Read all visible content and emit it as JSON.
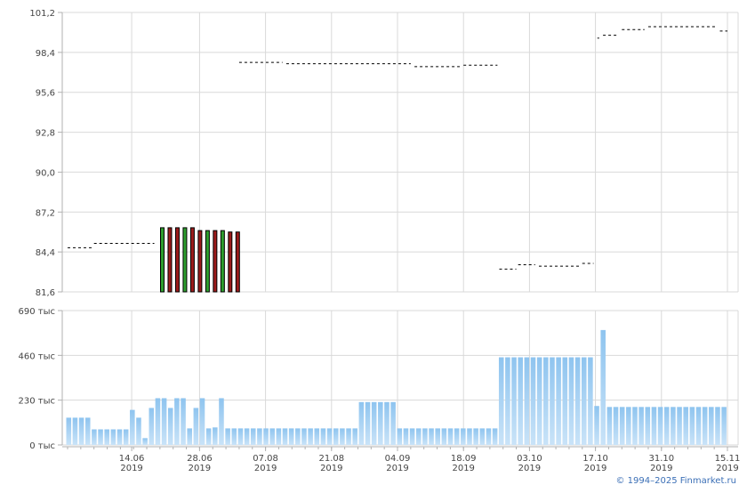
{
  "copyright": "© 1994–2025 Finmarket.ru",
  "colors": {
    "grid": "#d9d9d9",
    "axis": "#b0b0b0",
    "up": "#2e9e2e",
    "down": "#9b1b1b",
    "volume_top": "#8ec4ef",
    "volume_bottom": "#c9e3f8",
    "price_line": "#000000"
  },
  "chart_data": [
    {
      "type": "line",
      "name": "price",
      "ylim": [
        81.6,
        101.2
      ],
      "y_tick_labels": [
        "101,2",
        "98,4",
        "95,6",
        "92,8",
        "90,0",
        "87,2",
        "84,4",
        "81,6"
      ],
      "y_ticks": [
        101.2,
        98.4,
        95.6,
        92.8,
        90.0,
        87.2,
        84.4,
        81.6
      ],
      "x_range_days": [
        0,
        175
      ],
      "grid": true,
      "series_dashed": [
        {
          "x": [
            0,
            6.5
          ],
          "y": [
            84.7,
            84.7
          ]
        },
        {
          "x": [
            7,
            23
          ],
          "y": [
            85.0,
            85.0
          ]
        },
        {
          "x": [
            45.5,
            57
          ],
          "y": [
            97.7,
            97.7
          ]
        },
        {
          "x": [
            58,
            91
          ],
          "y": [
            97.6,
            97.6
          ]
        },
        {
          "x": [
            92,
            104
          ],
          "y": [
            97.4,
            97.4
          ]
        },
        {
          "x": [
            105,
            114
          ],
          "y": [
            97.5,
            97.5
          ]
        },
        {
          "x": [
            114.5,
            119
          ],
          "y": [
            83.2,
            83.2
          ]
        },
        {
          "x": [
            119.5,
            124
          ],
          "y": [
            83.5,
            83.5
          ]
        },
        {
          "x": [
            125,
            136
          ],
          "y": [
            83.4,
            83.4
          ]
        },
        {
          "x": [
            136.5,
            139.5
          ],
          "y": [
            83.6,
            83.6
          ]
        },
        {
          "x": [
            140.5,
            141
          ],
          "y": [
            99.4,
            99.4
          ]
        },
        {
          "x": [
            142,
            146
          ],
          "y": [
            99.6,
            99.6
          ]
        },
        {
          "x": [
            147,
            153
          ],
          "y": [
            100.0,
            100.0
          ]
        },
        {
          "x": [
            154,
            172
          ],
          "y": [
            100.2,
            100.2
          ]
        },
        {
          "x": [
            173,
            175
          ],
          "y": [
            99.9,
            99.9
          ]
        }
      ],
      "candles": [
        {
          "x": 25,
          "open": 81.6,
          "close": 86.1,
          "dir": "up"
        },
        {
          "x": 27,
          "open": 86.1,
          "close": 81.6,
          "dir": "down"
        },
        {
          "x": 29,
          "open": 86.1,
          "close": 81.6,
          "dir": "down"
        },
        {
          "x": 31,
          "open": 81.6,
          "close": 86.1,
          "dir": "up"
        },
        {
          "x": 33,
          "open": 86.1,
          "close": 81.6,
          "dir": "down"
        },
        {
          "x": 35,
          "open": 85.9,
          "close": 81.6,
          "dir": "down"
        },
        {
          "x": 37,
          "open": 81.6,
          "close": 85.9,
          "dir": "up"
        },
        {
          "x": 39,
          "open": 85.9,
          "close": 81.6,
          "dir": "down"
        },
        {
          "x": 41,
          "open": 81.6,
          "close": 85.9,
          "dir": "up"
        },
        {
          "x": 43,
          "open": 85.8,
          "close": 81.6,
          "dir": "down"
        },
        {
          "x": 45,
          "open": 85.8,
          "close": 81.6,
          "dir": "down"
        }
      ]
    },
    {
      "type": "bar",
      "name": "volume",
      "ylim": [
        0,
        690
      ],
      "y_tick_labels": [
        "690 тыс",
        "460 тыс",
        "230 тыс",
        "0 тыс"
      ],
      "y_ticks": [
        690,
        460,
        230,
        0
      ],
      "x_tick_labels": [
        [
          "14.06",
          "2019"
        ],
        [
          "28.06",
          "2019"
        ],
        [
          "07.08",
          "2019"
        ],
        [
          "21.08",
          "2019"
        ],
        [
          "04.09",
          "2019"
        ],
        [
          "18.09",
          "2019"
        ],
        [
          "03.10",
          "2019"
        ],
        [
          "17.10",
          "2019"
        ],
        [
          "31.10",
          "2019"
        ],
        [
          "15.11",
          "2019"
        ]
      ],
      "x_tick_positions": [
        17,
        35,
        52.5,
        70,
        87.5,
        105,
        122.5,
        140,
        157.5,
        175
      ],
      "values": [
        140,
        140,
        140,
        140,
        80,
        80,
        80,
        80,
        80,
        80,
        180,
        140,
        35,
        190,
        240,
        240,
        190,
        240,
        240,
        85,
        190,
        240,
        85,
        90,
        240,
        85,
        85,
        85,
        85,
        85,
        85,
        85,
        85,
        85,
        85,
        85,
        85,
        85,
        85,
        85,
        85,
        85,
        85,
        85,
        85,
        85,
        220,
        220,
        220,
        220,
        220,
        220,
        85,
        85,
        85,
        85,
        85,
        85,
        85,
        85,
        85,
        85,
        85,
        85,
        85,
        85,
        85,
        85,
        450,
        450,
        450,
        450,
        450,
        450,
        450,
        450,
        450,
        450,
        450,
        450,
        450,
        450,
        450,
        200,
        590,
        195,
        195,
        195,
        195,
        195,
        195,
        195,
        195,
        195,
        195,
        195,
        195,
        195,
        195,
        195,
        195,
        195,
        195,
        195
      ]
    }
  ]
}
